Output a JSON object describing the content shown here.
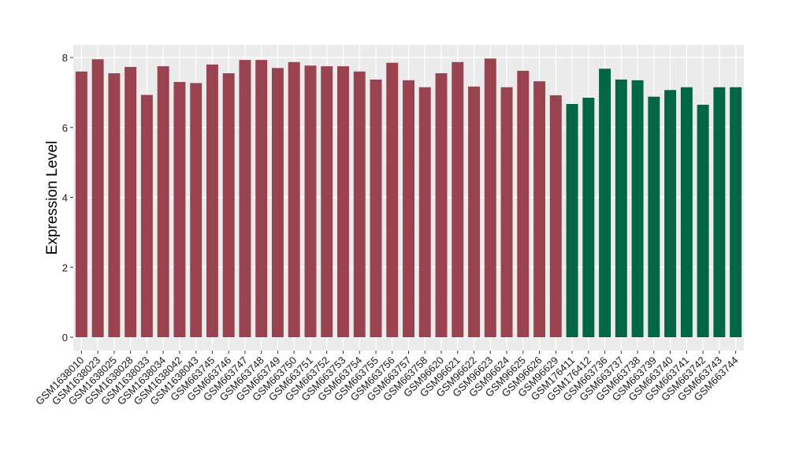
{
  "chart_data": {
    "type": "bar",
    "title": "",
    "xlabel": "",
    "ylabel": "Expression Level",
    "ylim": [
      0,
      8.3
    ],
    "yticks": [
      0,
      2,
      4,
      6,
      8
    ],
    "grid": true,
    "legend": "none",
    "colors": {
      "group_a": "#9a4350",
      "group_b": "#006644",
      "panel": "#ebebeb",
      "grid": "#ffffff"
    },
    "categories": [
      "GSM1638010",
      "GSM1638023",
      "GSM1638025",
      "GSM1638028",
      "GSM1638033",
      "GSM1638034",
      "GSM1638042",
      "GSM1638043",
      "GSM663745",
      "GSM663746",
      "GSM663747",
      "GSM663748",
      "GSM663749",
      "GSM663750",
      "GSM663751",
      "GSM663752",
      "GSM663753",
      "GSM663754",
      "GSM663755",
      "GSM663756",
      "GSM663757",
      "GSM663758",
      "GSM96620",
      "GSM96621",
      "GSM96622",
      "GSM96623",
      "GSM96624",
      "GSM96625",
      "GSM96626",
      "GSM96629",
      "GSM176411",
      "GSM176412",
      "GSM663736",
      "GSM663737",
      "GSM663738",
      "GSM663739",
      "GSM663740",
      "GSM663741",
      "GSM663742",
      "GSM663743",
      "GSM663744"
    ],
    "values": [
      7.6,
      7.95,
      7.55,
      7.73,
      6.93,
      7.75,
      7.3,
      7.27,
      7.8,
      7.55,
      7.93,
      7.93,
      7.7,
      7.87,
      7.77,
      7.75,
      7.75,
      7.6,
      7.37,
      7.85,
      7.35,
      7.15,
      7.55,
      7.87,
      7.17,
      7.97,
      7.15,
      7.62,
      7.32,
      6.92,
      6.67,
      6.85,
      7.68,
      7.37,
      7.35,
      6.88,
      7.07,
      7.15,
      6.65,
      7.15,
      7.15
    ],
    "group_b_start": 30
  }
}
